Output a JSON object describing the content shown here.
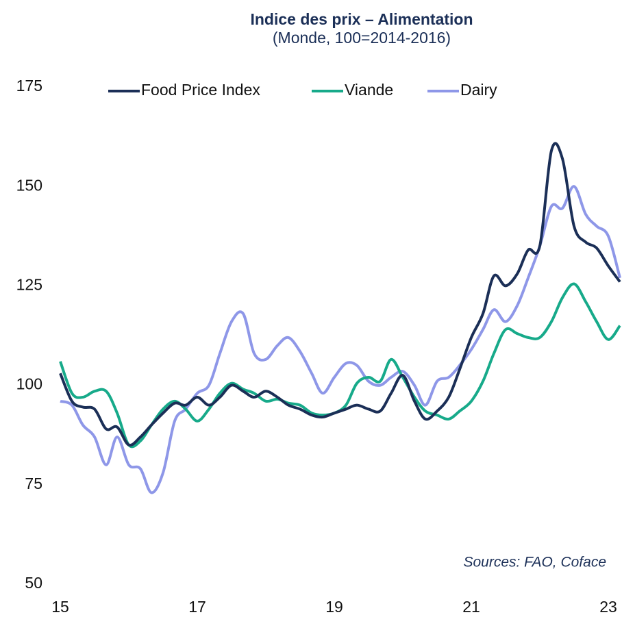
{
  "chart_data": {
    "type": "line",
    "title": "Indice des prix – Alimentation",
    "subtitle": "(Monde, 100=2014-2016)",
    "annotation": "Sources: FAO, Coface",
    "x": [
      15,
      15.17,
      15.33,
      15.5,
      15.67,
      15.83,
      16,
      16.17,
      16.33,
      16.5,
      16.67,
      16.83,
      17,
      17.17,
      17.33,
      17.5,
      17.67,
      17.83,
      18,
      18.17,
      18.33,
      18.5,
      18.67,
      18.83,
      19,
      19.17,
      19.33,
      19.5,
      19.67,
      19.83,
      20,
      20.17,
      20.33,
      20.5,
      20.67,
      20.83,
      21,
      21.17,
      21.33,
      21.5,
      21.67,
      21.83,
      22,
      22.17,
      22.33,
      22.5,
      22.67,
      22.83,
      23,
      23.17
    ],
    "series": [
      {
        "name": "Food Price Index",
        "color": "#1b2f57",
        "values": [
          103,
          96,
          94.5,
          94,
          89,
          89.5,
          85,
          87,
          90,
          93,
          95.5,
          95,
          97,
          95,
          97,
          100,
          98.5,
          97,
          98.5,
          97,
          95,
          94,
          92.5,
          92,
          93,
          94,
          95,
          94,
          93.5,
          98,
          102.5,
          96,
          91.5,
          93.5,
          97,
          104,
          112,
          118,
          127.5,
          125,
          128,
          134,
          135,
          159,
          157,
          140,
          136,
          134.5,
          130,
          126
        ]
      },
      {
        "name": "Viande",
        "color": "#17aa8a",
        "values": [
          106,
          98,
          97,
          98.5,
          98.5,
          93,
          85,
          86,
          90,
          94,
          96,
          94,
          91,
          94,
          98,
          100.5,
          99,
          98,
          96,
          96.5,
          95.5,
          95,
          93,
          92.5,
          93,
          95,
          100.5,
          102,
          101,
          106.5,
          102,
          97,
          93.5,
          92.5,
          91.5,
          93.5,
          96,
          101,
          108,
          114,
          113,
          112,
          112,
          116,
          122,
          125.5,
          121,
          116,
          111.5,
          115
        ]
      },
      {
        "name": "Dairy",
        "color": "#8e97e8",
        "values": [
          96,
          95,
          90,
          87,
          80,
          87,
          80,
          79,
          73,
          78,
          91,
          94,
          98,
          100,
          108,
          116,
          118,
          108,
          106.5,
          110,
          112,
          108.5,
          103,
          98,
          102,
          105.5,
          105,
          101,
          100,
          102,
          103.5,
          100,
          95,
          101,
          102,
          105,
          109,
          114,
          119,
          116,
          120,
          127,
          135,
          145,
          144.5,
          150,
          143,
          140,
          137.5,
          127
        ]
      }
    ],
    "xlim": [
      15,
      23.2
    ],
    "xticks": [
      15,
      17,
      19,
      21,
      23
    ],
    "ylim": [
      50,
      175
    ],
    "yticks": [
      50,
      75,
      100,
      125,
      150,
      175
    ]
  }
}
